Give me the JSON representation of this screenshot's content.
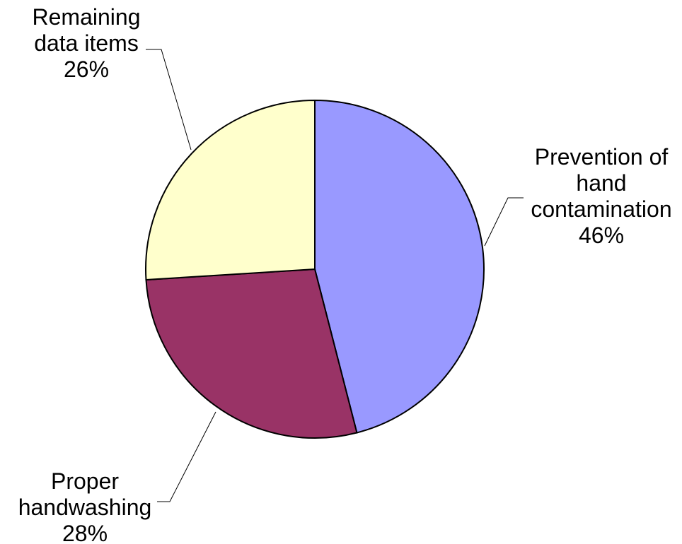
{
  "chart_data": {
    "type": "pie",
    "title": "",
    "start_angle_deg": 0,
    "direction": "clockwise",
    "slices": [
      {
        "name_lines": [
          "Prevention of",
          "hand",
          "contamination"
        ],
        "value": 46,
        "percent_label": "46%",
        "color": "#9999FF"
      },
      {
        "name_lines": [
          "Proper",
          "handwashing"
        ],
        "value": 28,
        "percent_label": "28%",
        "color": "#993366"
      },
      {
        "name_lines": [
          "Remaining",
          "data items"
        ],
        "value": 26,
        "percent_label": "26%",
        "color": "#FFFFCC"
      }
    ],
    "legend": "none",
    "label_position": "outside with leader lines"
  }
}
